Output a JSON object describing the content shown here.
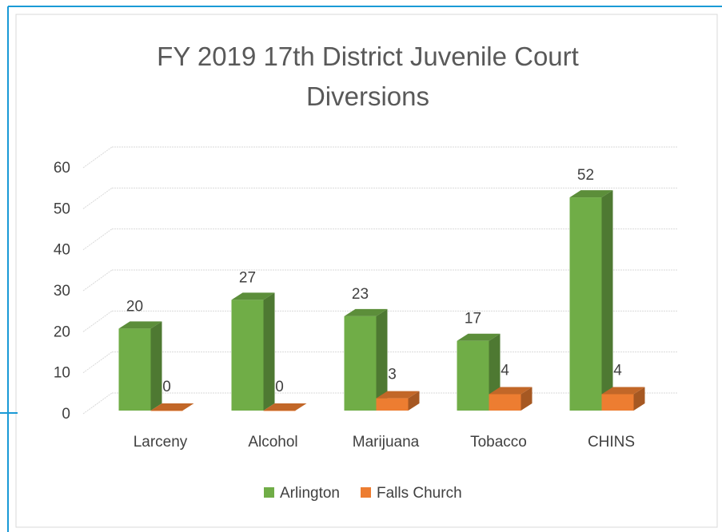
{
  "chart_data": {
    "type": "bar3d",
    "title": "FY 2019 17th District Juvenile Court Diversions",
    "categories": [
      "Larceny",
      "Alcohol",
      "Marijuana",
      "Tobacco",
      "CHINS"
    ],
    "series": [
      {
        "name": "Arlington",
        "color": "#70ad47",
        "values": [
          20,
          27,
          23,
          17,
          52
        ]
      },
      {
        "name": "Falls Church",
        "color": "#ed7d31",
        "values": [
          0,
          0,
          3,
          4,
          4
        ]
      }
    ],
    "ylim": [
      0,
      60
    ],
    "yticks": [
      0,
      10,
      20,
      30,
      40,
      50,
      60
    ],
    "grid": true,
    "legend": "bottom"
  }
}
